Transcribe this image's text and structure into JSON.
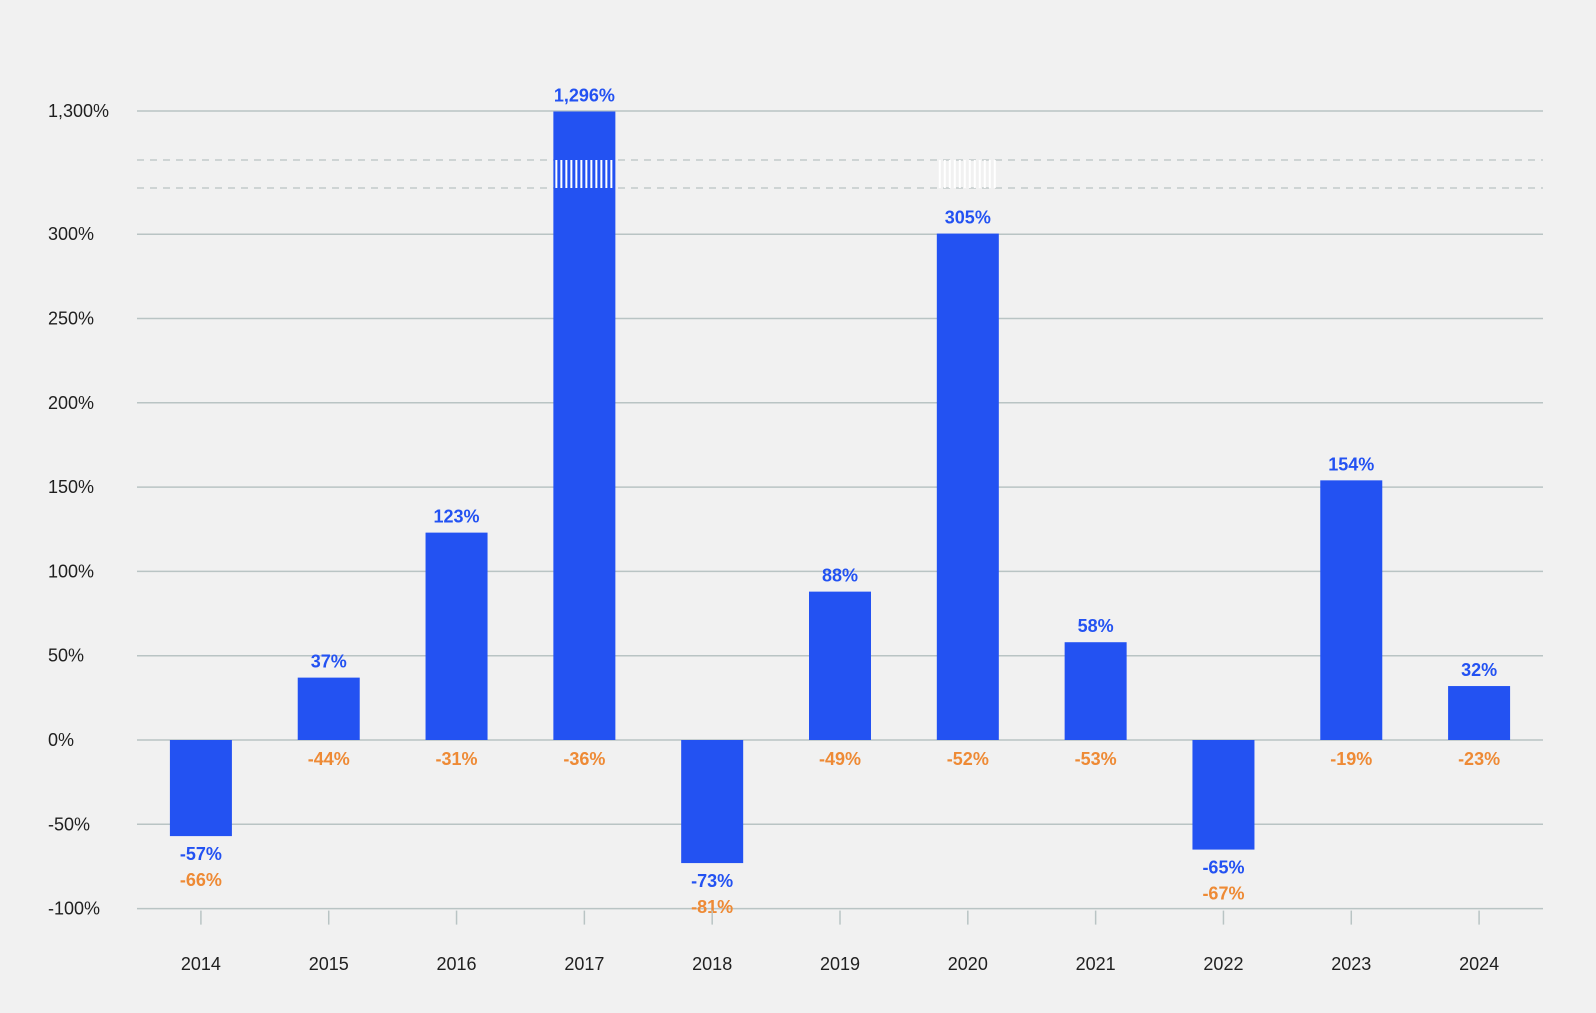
{
  "chart_data": {
    "type": "bar",
    "categories": [
      "2014",
      "2015",
      "2016",
      "2017",
      "2018",
      "2019",
      "2020",
      "2021",
      "2022",
      "2023",
      "2024"
    ],
    "series": [
      {
        "values": [
          -57,
          37,
          123,
          1296,
          -73,
          88,
          305,
          58,
          -65,
          154,
          32
        ],
        "labels": [
          "-57%",
          "37%",
          "123%",
          "1,296%",
          "-73%",
          "88%",
          "305%",
          "58%",
          "-65%",
          "154%",
          "32%"
        ]
      },
      {
        "values": [
          -66,
          -44,
          -31,
          -36,
          -81,
          -49,
          -52,
          -53,
          -67,
          -19,
          -23
        ],
        "labels": [
          "-66%",
          "-44%",
          "-31%",
          "-36%",
          "-81%",
          "-49%",
          "-52%",
          "-53%",
          "-67%",
          "-19%",
          "-23%"
        ]
      }
    ],
    "yticks": [
      {
        "value": -100,
        "label": "-100%"
      },
      {
        "value": -50,
        "label": "-50%"
      },
      {
        "value": 0,
        "label": "0%"
      },
      {
        "value": 50,
        "label": "50%"
      },
      {
        "value": 100,
        "label": "100%"
      },
      {
        "value": 150,
        "label": "150%"
      },
      {
        "value": 200,
        "label": "200%"
      },
      {
        "value": 250,
        "label": "250%"
      },
      {
        "value": 300,
        "label": "300%"
      },
      {
        "value": 1300,
        "label": "1,300%"
      }
    ],
    "ylim": [
      -100,
      1300
    ],
    "axis_break": true,
    "grid": true,
    "colors": {
      "bar": "#2352f2",
      "bar_label": "#2352f2",
      "secondary_label": "#ee8a35",
      "grid": "#b9c4c4",
      "background": "#f1f1f1"
    },
    "title": "",
    "xlabel": "",
    "ylabel": ""
  }
}
